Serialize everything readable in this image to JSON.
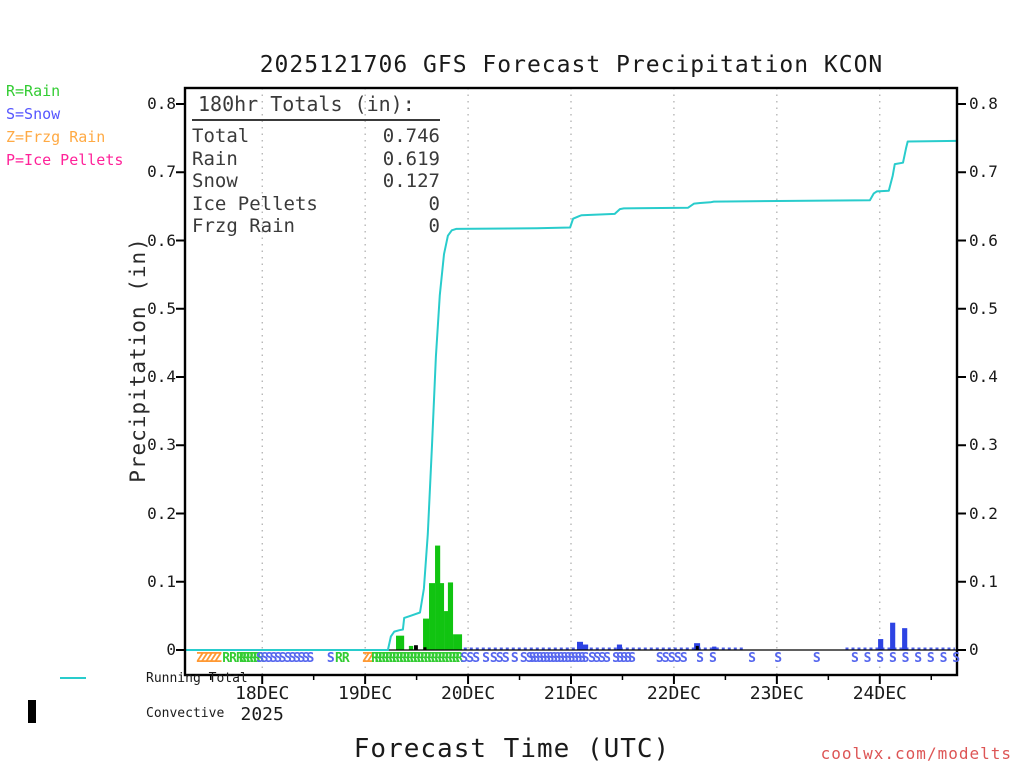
{
  "title": "2025121706 GFS Forecast Precipitation KCON",
  "watermark": "coolwx.com/modelts",
  "axes": {
    "y_label": "Precipitation (in)",
    "x_label": "Forecast Time (UTC)",
    "year_label": "2025"
  },
  "type_legend": {
    "items": [
      {
        "label": "R=Rain",
        "color": "#33cc33"
      },
      {
        "label": "S=Snow",
        "color": "#5555ff"
      },
      {
        "label": "Z=Frzg Rain",
        "color": "#ffaa44"
      },
      {
        "label": "P=Ice Pellets",
        "color": "#ff2299"
      }
    ]
  },
  "totals_box": {
    "heading": "180hr Totals (in):",
    "rows": [
      {
        "label": "Total",
        "value": "0.746"
      },
      {
        "label": "Rain",
        "value": "0.619"
      },
      {
        "label": "Snow",
        "value": "0.127"
      },
      {
        "label": "Ice Pellets",
        "value": "0"
      },
      {
        "label": "Frzg Rain",
        "value": "0"
      }
    ]
  },
  "series_legend": {
    "running_total_label": "Running Total",
    "convective_label": "Convective"
  },
  "chart_data": {
    "type": "line+bar",
    "title": "2025121706 GFS Forecast Precipitation KCON",
    "xlabel": "Forecast Time (UTC)",
    "ylabel": "Precipitation (in)",
    "x_axis": {
      "start": "17DEC2025 06UTC",
      "end": "24DEC2025 18UTC",
      "total_hours": 180,
      "major_ticks": [
        {
          "hour": 18,
          "label": "18DEC"
        },
        {
          "hour": 42,
          "label": "19DEC"
        },
        {
          "hour": 66,
          "label": "20DEC"
        },
        {
          "hour": 90,
          "label": "21DEC"
        },
        {
          "hour": 114,
          "label": "22DEC"
        },
        {
          "hour": 138,
          "label": "23DEC"
        },
        {
          "hour": 162,
          "label": "24DEC"
        }
      ],
      "minor_tick_hours": [
        6,
        30,
        54,
        78,
        102,
        126,
        150,
        174
      ],
      "grid": "dotted-vertical-at-major-ticks"
    },
    "y_axis": {
      "min": 0,
      "max": 0.8,
      "ticks": [
        0,
        0.1,
        0.2,
        0.3,
        0.4,
        0.5,
        0.6,
        0.7,
        0.8
      ],
      "tick_labels": [
        "0",
        "0.1",
        "0.2",
        "0.3",
        "0.4",
        "0.5",
        "0.6",
        "0.7",
        "0.8"
      ],
      "mirrored_right": true
    },
    "running_total": {
      "name": "Running Total",
      "color": "#29cccc",
      "points": [
        [
          0,
          0
        ],
        [
          47.3,
          0
        ],
        [
          48.0,
          0.02
        ],
        [
          48.8,
          0.027
        ],
        [
          50.0,
          0.029
        ],
        [
          50.8,
          0.03
        ],
        [
          51.1,
          0.047
        ],
        [
          52.5,
          0.05
        ],
        [
          54.8,
          0.055
        ],
        [
          55.7,
          0.09
        ],
        [
          56.6,
          0.17
        ],
        [
          57.6,
          0.3
        ],
        [
          58.5,
          0.43
        ],
        [
          59.4,
          0.52
        ],
        [
          60.4,
          0.58
        ],
        [
          61.3,
          0.607
        ],
        [
          62.2,
          0.615
        ],
        [
          63.2,
          0.617
        ],
        [
          82.0,
          0.618
        ],
        [
          89.8,
          0.619
        ],
        [
          90.5,
          0.632
        ],
        [
          92.0,
          0.636
        ],
        [
          92.5,
          0.637
        ],
        [
          100.2,
          0.639
        ],
        [
          101.4,
          0.646
        ],
        [
          102.3,
          0.647
        ],
        [
          117.3,
          0.648
        ],
        [
          118.7,
          0.654
        ],
        [
          120.1,
          0.655
        ],
        [
          122.5,
          0.656
        ],
        [
          123.3,
          0.657
        ],
        [
          159.7,
          0.659
        ],
        [
          160.6,
          0.669
        ],
        [
          161.3,
          0.672
        ],
        [
          164.1,
          0.673
        ],
        [
          165.0,
          0.695
        ],
        [
          165.5,
          0.712
        ],
        [
          167.4,
          0.714
        ],
        [
          168.1,
          0.735
        ],
        [
          168.5,
          0.745
        ],
        [
          180,
          0.746
        ]
      ]
    },
    "bar_colors": {
      "rain": "#11c411",
      "snow": "#2d43e3",
      "convective": "#000000"
    },
    "bars": [
      {
        "hour": 49.2,
        "width_h": 1.9,
        "value": 0.021,
        "type": "rain"
      },
      {
        "hour": 52.2,
        "width_h": 1.0,
        "value": 0.006,
        "type": "rain"
      },
      {
        "hour": 53.4,
        "width_h": 0.9,
        "value": 0.007,
        "type": "convective"
      },
      {
        "hour": 55.5,
        "width_h": 1.4,
        "value": 0.046,
        "type": "rain"
      },
      {
        "hour": 55.6,
        "width_h": 0.7,
        "value": 0.004,
        "type": "convective"
      },
      {
        "hour": 56.9,
        "width_h": 1.4,
        "value": 0.098,
        "type": "rain"
      },
      {
        "hour": 58.3,
        "width_h": 1.2,
        "value": 0.153,
        "type": "rain"
      },
      {
        "hour": 59.4,
        "width_h": 1.0,
        "value": 0.098,
        "type": "rain"
      },
      {
        "hour": 60.4,
        "width_h": 1.0,
        "value": 0.057,
        "type": "rain"
      },
      {
        "hour": 61.3,
        "width_h": 1.2,
        "value": 0.099,
        "type": "rain"
      },
      {
        "hour": 62.5,
        "width_h": 2.1,
        "value": 0.023,
        "type": "rain"
      },
      {
        "hour": 91.4,
        "width_h": 1.4,
        "value": 0.012,
        "type": "snow"
      },
      {
        "hour": 92.8,
        "width_h": 1.2,
        "value": 0.008,
        "type": "snow"
      },
      {
        "hour": 100.7,
        "width_h": 1.2,
        "value": 0.008,
        "type": "snow"
      },
      {
        "hour": 118.7,
        "width_h": 1.4,
        "value": 0.01,
        "type": "snow"
      },
      {
        "hour": 119.1,
        "width_h": 0.7,
        "value": 0.006,
        "type": "convective"
      },
      {
        "hour": 122.9,
        "width_h": 1.0,
        "value": 0.005,
        "type": "snow"
      },
      {
        "hour": 161.6,
        "width_h": 1.2,
        "value": 0.016,
        "type": "snow"
      },
      {
        "hour": 164.4,
        "width_h": 1.2,
        "value": 0.04,
        "type": "snow"
      },
      {
        "hour": 167.2,
        "width_h": 1.2,
        "value": 0.032,
        "type": "snow"
      }
    ],
    "snow_trace_segments_hours": [
      [
        65,
        130.5
      ],
      [
        154,
        179.5
      ]
    ],
    "ptype_markers": {
      "colors": {
        "R": "#33cc33",
        "S": "#5566ee",
        "Z": "#ff9933"
      },
      "groups": [
        {
          "t": "Z",
          "start": 3.5,
          "step": 1.05,
          "n": 5
        },
        {
          "t": "R",
          "start": 9.6,
          "step": 1.6,
          "n": 3
        },
        {
          "t": "R",
          "start": 13.5,
          "step": 0.82,
          "n": 6
        },
        {
          "t": "S",
          "start": 17.5,
          "step": 1.05,
          "n": 6
        },
        {
          "t": "S",
          "start": 24.0,
          "step": 1.05,
          "n": 6
        },
        {
          "t": "S",
          "start": 34.0,
          "step": 0,
          "n": 1
        },
        {
          "t": "R",
          "start": 35.9,
          "step": 1.6,
          "n": 2
        },
        {
          "t": "Z",
          "start": 42.2,
          "step": 1.05,
          "n": 2
        },
        {
          "t": "R",
          "start": 44.3,
          "step": 0.82,
          "n": 25
        },
        {
          "t": "S",
          "start": 65.1,
          "step": 1.4,
          "n": 3
        },
        {
          "t": "S",
          "start": 70.2,
          "step": 0,
          "n": 1
        },
        {
          "t": "S",
          "start": 72.0,
          "step": 1.4,
          "n": 3
        },
        {
          "t": "S",
          "start": 76.9,
          "step": 0,
          "n": 1
        },
        {
          "t": "S",
          "start": 79.0,
          "step": 1.4,
          "n": 2
        },
        {
          "t": "S",
          "start": 81.1,
          "step": 0.82,
          "n": 16
        },
        {
          "t": "S",
          "start": 94.9,
          "step": 1.17,
          "n": 4
        },
        {
          "t": "S",
          "start": 100.5,
          "step": 0.93,
          "n": 5
        },
        {
          "t": "S",
          "start": 110.7,
          "step": 1.4,
          "n": 5
        },
        {
          "t": "S",
          "start": 120.1,
          "step": 0,
          "n": 1
        },
        {
          "t": "S",
          "start": 123.1,
          "step": 0,
          "n": 1
        },
        {
          "t": "S",
          "start": 132.2,
          "step": 0,
          "n": 1
        },
        {
          "t": "S",
          "start": 138.3,
          "step": 0,
          "n": 1
        },
        {
          "t": "S",
          "start": 147.3,
          "step": 0,
          "n": 1
        },
        {
          "t": "S",
          "start": 156.2,
          "step": 2.95,
          "n": 9
        }
      ]
    }
  }
}
